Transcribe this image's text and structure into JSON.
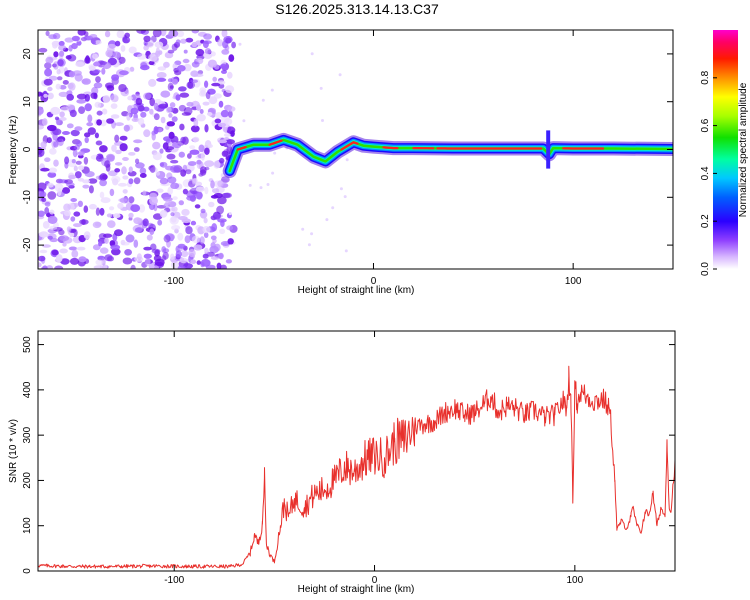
{
  "title": "S126.2025.313.14.13.C37",
  "chart_data": [
    {
      "type": "heatmap",
      "xlabel": "Height of straight line (km)",
      "ylabel": "Frequency (Hz)",
      "xlim": [
        -168,
        150
      ],
      "ylim": [
        -25,
        25
      ],
      "x_ticks": [
        -100,
        0,
        100
      ],
      "y_ticks": [
        -20,
        -10,
        0,
        10,
        20
      ],
      "colorbar": {
        "label": "Normalized spectral amplitude",
        "range": [
          0,
          1
        ],
        "ticks": [
          0.0,
          0.2,
          0.4,
          0.6,
          0.8
        ],
        "colors": [
          "#ffffff",
          "#9b59ff",
          "#2a00ff",
          "#0000ff",
          "#0080ff",
          "#00e0ff",
          "#00ff80",
          "#20e000",
          "#a0ff00",
          "#ffff00",
          "#ffa000",
          "#ff2000",
          "#ff0066",
          "#ff00cc"
        ]
      },
      "noise_region_x": [
        -168,
        -72
      ],
      "ridge": {
        "x": [
          -72,
          -68,
          -60,
          -52,
          -45,
          -38,
          -30,
          -24,
          -18,
          -10,
          -5,
          0,
          10,
          20,
          40,
          60,
          85,
          88,
          90,
          100,
          120,
          150
        ],
        "freq": [
          -4.5,
          0,
          1.0,
          1.0,
          2.0,
          1.0,
          -1.5,
          -2.5,
          -0.5,
          1.5,
          0.8,
          0.6,
          0.3,
          0.3,
          0.2,
          0.2,
          0.2,
          -1.0,
          0.3,
          0.2,
          0.2,
          0.1
        ]
      }
    },
    {
      "type": "line",
      "xlabel": "Height of straight line (km)",
      "ylabel": "SNR (10 * v/v)",
      "xlim": [
        -168,
        150
      ],
      "ylim": [
        0,
        530
      ],
      "x_ticks": [
        -100,
        0,
        100
      ],
      "y_ticks": [
        0,
        100,
        200,
        300,
        400,
        500
      ],
      "series": [
        {
          "color": "#e8302c",
          "x": [
            -168,
            -150,
            -130,
            -110,
            -90,
            -72,
            -66,
            -62,
            -60,
            -58,
            -56,
            -55,
            -54,
            -52,
            -50,
            -47,
            -45,
            -43,
            -40,
            -35,
            -30,
            -25,
            -20,
            -15,
            -10,
            -5,
            0,
            5,
            10,
            15,
            20,
            25,
            30,
            35,
            40,
            45,
            50,
            55,
            58,
            62,
            66,
            70,
            75,
            80,
            85,
            90,
            94,
            96,
            97,
            98,
            99,
            100,
            101,
            103,
            106,
            110,
            114,
            117,
            118,
            120,
            121,
            123,
            126,
            128,
            129,
            131,
            133,
            135,
            137,
            139,
            141,
            143,
            145,
            146,
            147,
            148,
            150
          ],
          "y": [
            12,
            10,
            10,
            11,
            10,
            10,
            15,
            40,
            80,
            60,
            110,
            205,
            60,
            35,
            20,
            100,
            150,
            120,
            160,
            140,
            170,
            180,
            200,
            230,
            220,
            245,
            255,
            250,
            285,
            290,
            320,
            325,
            330,
            350,
            360,
            345,
            350,
            370,
            385,
            350,
            365,
            360,
            345,
            355,
            340,
            345,
            375,
            360,
            430,
            390,
            150,
            420,
            370,
            395,
            385,
            375,
            380,
            360,
            330,
            200,
            90,
            110,
            95,
            120,
            140,
            100,
            85,
            130,
            125,
            170,
            100,
            140,
            120,
            290,
            150,
            130,
            245
          ]
        }
      ]
    }
  ]
}
